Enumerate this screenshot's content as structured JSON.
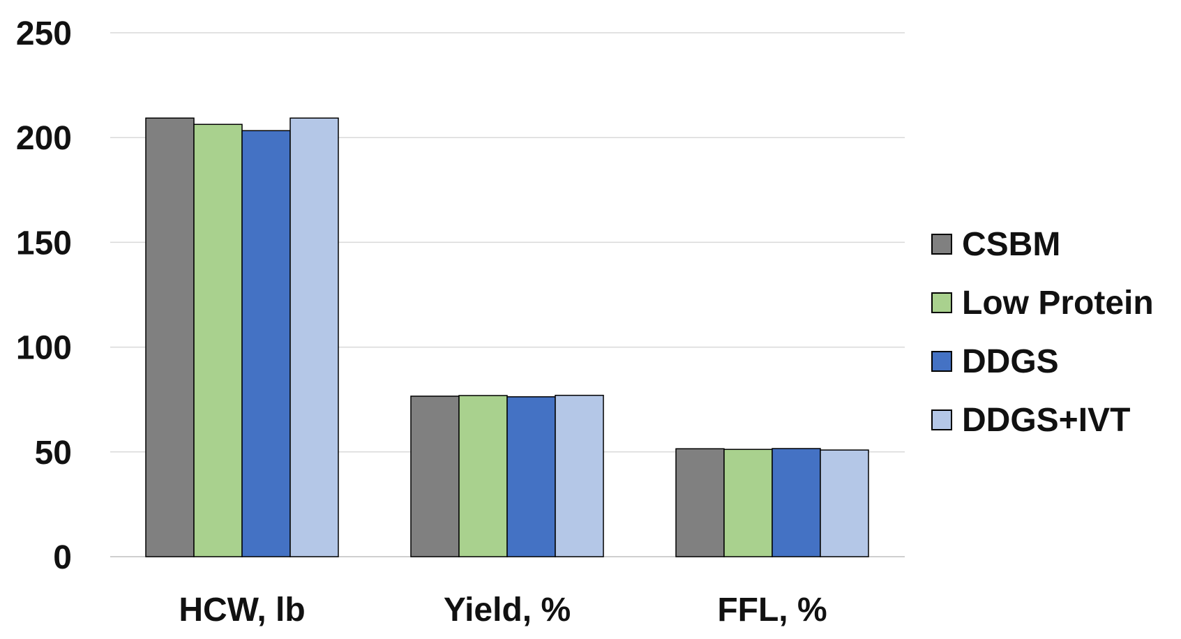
{
  "chart_data": {
    "type": "bar",
    "categories": [
      "HCW, lb",
      "Yield, %",
      "FFL, %"
    ],
    "series": [
      {
        "name": "CSBM",
        "values": [
          209.3,
          76.6,
          51.5
        ],
        "color": "#808080"
      },
      {
        "name": "Low Protein",
        "values": [
          206.3,
          76.9,
          51.2
        ],
        "color": "#a9d18e"
      },
      {
        "name": "DDGS",
        "values": [
          203.3,
          76.3,
          51.6
        ],
        "color": "#4472c4"
      },
      {
        "name": "DDGS+IVT",
        "values": [
          209.3,
          77.0,
          50.9
        ],
        "color": "#b4c7e7"
      }
    ],
    "yticks": [
      "0",
      "50",
      "100",
      "150",
      "200",
      "250"
    ],
    "ylim": [
      0,
      250
    ],
    "grid": true,
    "legend_position": "right"
  }
}
